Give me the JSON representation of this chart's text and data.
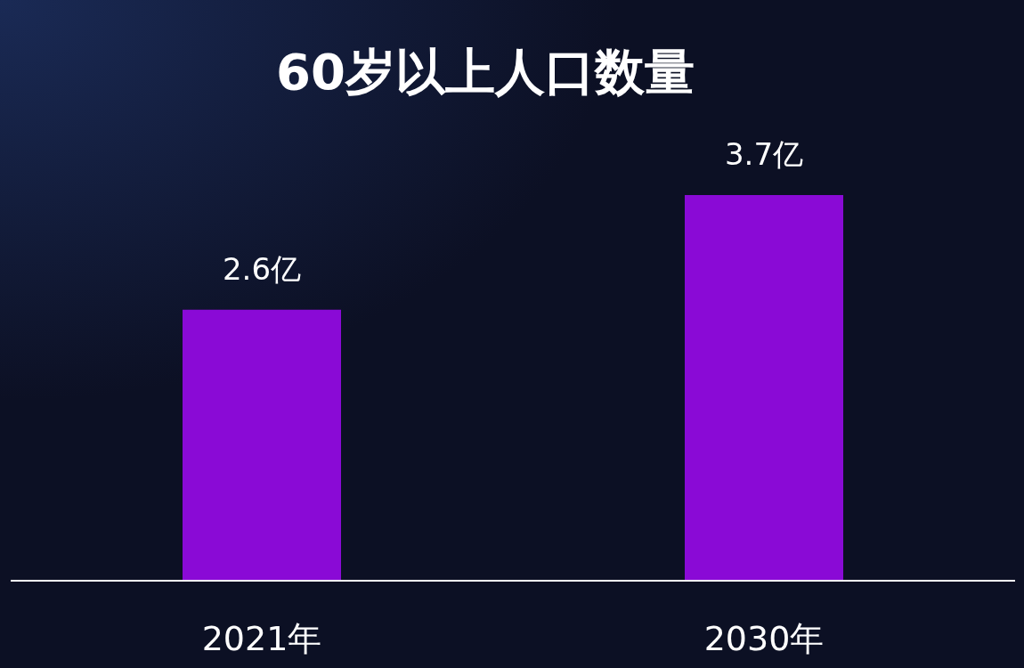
{
  "chart_data": {
    "type": "bar",
    "title": "60岁以上人口数量",
    "categories": [
      "2021年",
      "2030年"
    ],
    "series": [
      {
        "color": "#8a0ad6",
        "values": [
          2.6,
          3.7
        ],
        "value_labels": [
          "2.6亿",
          "3.7亿"
        ]
      }
    ]
  }
}
